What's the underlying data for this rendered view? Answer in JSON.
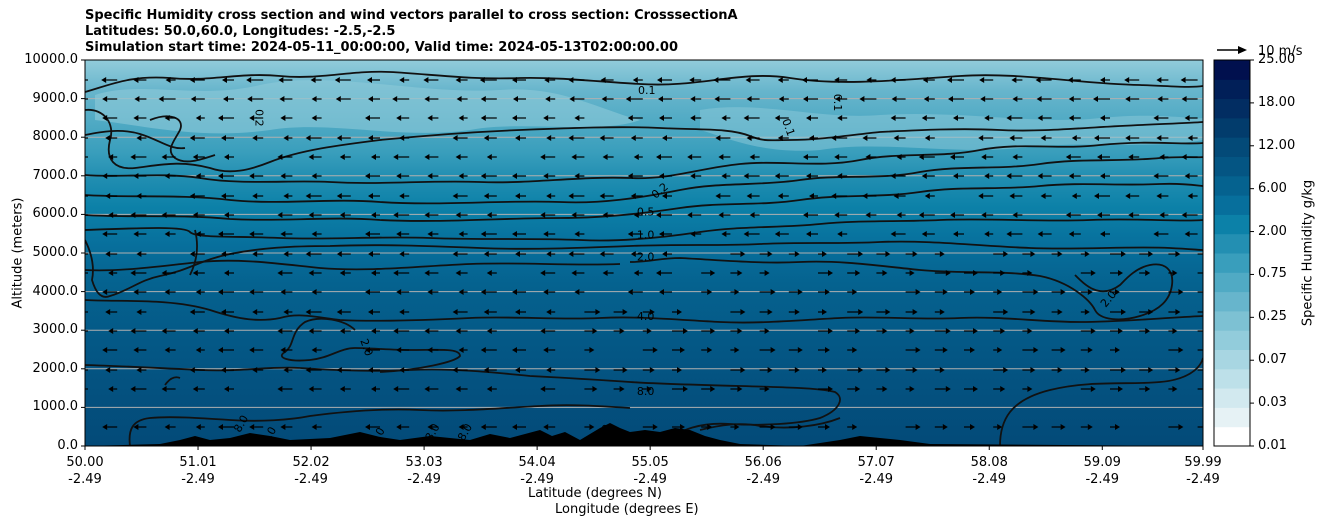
{
  "chart_data": {
    "type": "heatmap",
    "title_lines": [
      "Specific Humidity cross section and wind vectors parallel to cross section: CrosssectionA",
      "Latitudes: 50.0,60.0, Longitudes: -2.5,-2.5",
      "Simulation start time: 2024-05-11_00:00:00, Valid time: 2024-05-13T02:00:00.00"
    ],
    "ylabel": "Altitude (meters)",
    "xlabel_lines": [
      "Latitude (degrees N)",
      "Longitude (degrees E)"
    ],
    "ylim": [
      0,
      10000
    ],
    "y_ticks": [
      "0.0",
      "1000.0",
      "2000.0",
      "3000.0",
      "4000.0",
      "5000.0",
      "6000.0",
      "7000.0",
      "8000.0",
      "9000.0",
      "10000.0"
    ],
    "y_tick_values": [
      0,
      1000,
      2000,
      3000,
      4000,
      5000,
      6000,
      7000,
      8000,
      9000,
      10000
    ],
    "x_ticks": [
      {
        "lat": "50.00",
        "lon": "-2.49"
      },
      {
        "lat": "51.01",
        "lon": "-2.49"
      },
      {
        "lat": "52.02",
        "lon": "-2.49"
      },
      {
        "lat": "53.03",
        "lon": "-2.49"
      },
      {
        "lat": "54.04",
        "lon": "-2.49"
      },
      {
        "lat": "55.05",
        "lon": "-2.49"
      },
      {
        "lat": "56.06",
        "lon": "-2.49"
      },
      {
        "lat": "57.07",
        "lon": "-2.49"
      },
      {
        "lat": "58.08",
        "lon": "-2.49"
      },
      {
        "lat": "59.09",
        "lon": "-2.49"
      },
      {
        "lat": "59.99",
        "lon": "-2.49"
      }
    ],
    "grid": "horizontal",
    "colorbar": {
      "label": "Specific Humidity g/kg",
      "ticks": [
        "0.01",
        "0.03",
        "0.07",
        "0.25",
        "0.75",
        "2.00",
        "6.00",
        "12.00",
        "18.00",
        "25.00"
      ],
      "colors": [
        "#ffffff",
        "#e6f2f5",
        "#d2e9ef",
        "#bde0e9",
        "#a8d6e2",
        "#92ccdb",
        "#7dc1d3",
        "#67b5cc",
        "#50aac4",
        "#399ebc",
        "#238fb2",
        "#0c81a8",
        "#076f9c",
        "#05628f",
        "#045583",
        "#034a78",
        "#023c6c",
        "#022d62",
        "#011f58",
        "#01104e"
      ]
    },
    "contour_levels": [
      "0.1",
      "0.2",
      "0.5",
      "1.0",
      "2.0",
      "4.0",
      "8.0"
    ],
    "contour_labels": [
      {
        "text": "0.1",
        "lat": 55.02,
        "alt": 9200
      },
      {
        "text": "0.2",
        "lat": 51.55,
        "alt": 8500
      },
      {
        "text": "0.1",
        "lat": 56.72,
        "alt": 8900
      },
      {
        "text": "0.1",
        "lat": 56.28,
        "alt": 8250
      },
      {
        "text": "0.2",
        "lat": 55.14,
        "alt": 6600
      },
      {
        "text": "0.5",
        "lat": 55.01,
        "alt": 6050
      },
      {
        "text": "1.0",
        "lat": 55.01,
        "alt": 5450
      },
      {
        "text": "2.0",
        "lat": 55.01,
        "alt": 4880
      },
      {
        "text": "2.0",
        "lat": 59.15,
        "alt": 3800
      },
      {
        "text": "4.0",
        "lat": 55.01,
        "alt": 3340
      },
      {
        "text": "2.0",
        "lat": 52.51,
        "alt": 2550
      },
      {
        "text": "8.0",
        "lat": 55.01,
        "alt": 1400
      },
      {
        "text": "8.0",
        "lat": 51.4,
        "alt": 570
      },
      {
        "text": "8.0",
        "lat": 51.65,
        "alt": 270
      },
      {
        "text": "8.0",
        "lat": 52.62,
        "alt": 250
      },
      {
        "text": "8.0",
        "lat": 53.11,
        "alt": 350
      },
      {
        "text": "8.0",
        "lat": 53.4,
        "alt": 350
      },
      {
        "text": "8.0",
        "lat": 54.64,
        "alt": 330
      }
    ],
    "wind_key": "10 m/s"
  }
}
